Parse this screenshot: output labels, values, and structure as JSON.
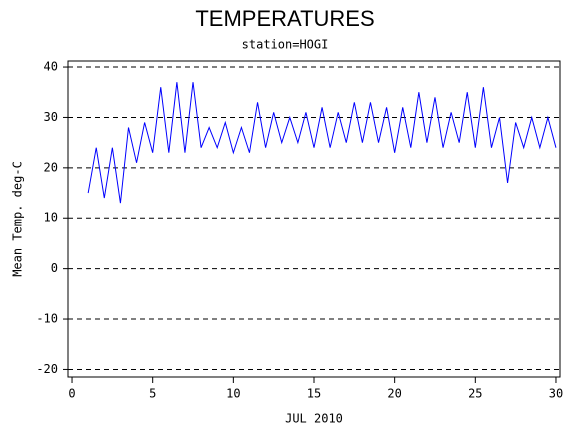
{
  "chart_data": {
    "type": "line",
    "title": "TEMPERATURES",
    "subtitle": "station=HOGI",
    "y_label": "Mean Temp. deg-C",
    "x_label": "JUL 2010",
    "x": [
      1,
      1.5,
      2,
      2.5,
      3,
      3.5,
      4,
      4.5,
      5,
      5.5,
      6,
      6.5,
      7,
      7.5,
      8,
      8.5,
      9,
      9.5,
      10,
      10.5,
      11,
      11.5,
      12,
      12.5,
      13,
      13.5,
      14,
      14.5,
      15,
      15.5,
      16,
      16.5,
      17,
      17.5,
      18,
      18.5,
      19,
      19.5,
      20,
      20.5,
      21,
      21.5,
      22,
      22.5,
      23,
      23.5,
      24,
      24.5,
      25,
      25.5,
      26,
      26.5,
      27,
      27.5,
      28,
      28.5,
      29,
      29.5,
      30
    ],
    "series": [
      {
        "color": "#0000ff",
        "values": [
          15,
          24,
          14,
          24,
          13,
          28,
          21,
          29,
          23,
          36,
          23,
          37,
          23,
          37,
          24,
          28,
          24,
          29,
          23,
          28,
          23,
          33,
          24,
          31,
          25,
          30,
          25,
          31,
          24,
          32,
          24,
          31,
          25,
          33,
          25,
          33,
          25,
          32,
          23,
          32,
          24,
          35,
          25,
          34,
          24,
          31,
          25,
          35,
          24,
          36,
          24,
          30,
          17,
          29,
          24,
          30,
          24,
          30,
          24
        ]
      }
    ],
    "xlim": [
      -0.25,
      30.25
    ],
    "ylim": [
      -21.5,
      41.2
    ],
    "xticks": [
      0,
      5,
      10,
      15,
      20,
      25,
      30
    ],
    "yticks": [
      -20,
      -10,
      0,
      10,
      20,
      30,
      40
    ],
    "grid": true
  }
}
